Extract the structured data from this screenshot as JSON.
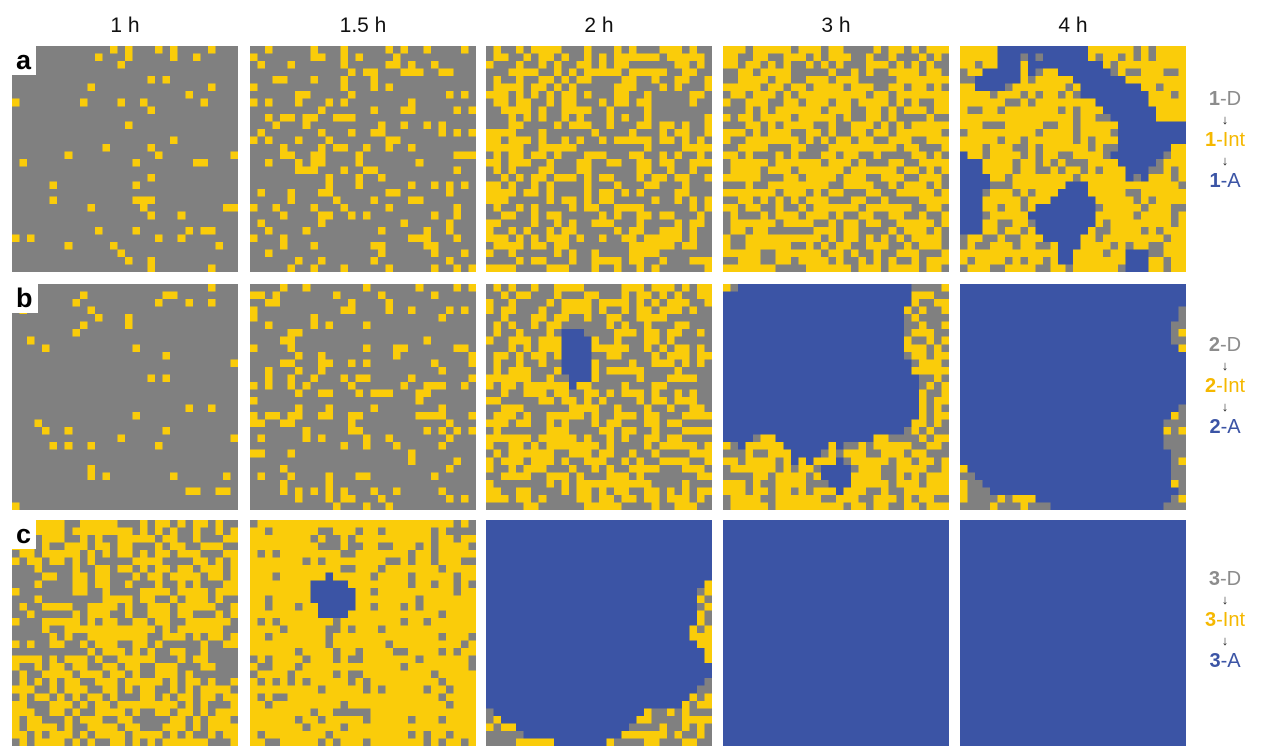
{
  "colors": {
    "gray": "#808080",
    "yellow": "#FACC0A",
    "blue": "#3B54A5"
  },
  "time_labels": [
    "1 h",
    "1.5 h",
    "2 h",
    "3 h",
    "4 h"
  ],
  "rows": [
    {
      "label": "a",
      "legend": [
        {
          "num": "1",
          "suffix": "-D",
          "color": "#8C8C8C"
        },
        {
          "num": "1",
          "suffix": "-Int",
          "color": "#F5B800"
        },
        {
          "num": "1",
          "suffix": "-A",
          "color": "#3B54A5"
        }
      ],
      "panels": [
        {
          "yellow_fraction": 0.07,
          "blue_fraction": 0.0
        },
        {
          "yellow_fraction": 0.2,
          "blue_fraction": 0.0
        },
        {
          "yellow_fraction": 0.45,
          "blue_fraction": 0.0
        },
        {
          "yellow_fraction": 0.62,
          "blue_fraction": 0.0
        },
        {
          "yellow_fraction": 0.55,
          "blue_fraction": 0.28
        }
      ]
    },
    {
      "label": "b",
      "legend": [
        {
          "num": "2",
          "suffix": "-D",
          "color": "#8C8C8C"
        },
        {
          "num": "2",
          "suffix": "-Int",
          "color": "#F5B800"
        },
        {
          "num": "2",
          "suffix": "-A",
          "color": "#3B54A5"
        }
      ],
      "panels": [
        {
          "yellow_fraction": 0.05,
          "blue_fraction": 0.0
        },
        {
          "yellow_fraction": 0.18,
          "blue_fraction": 0.0
        },
        {
          "yellow_fraction": 0.48,
          "blue_fraction": 0.03
        },
        {
          "yellow_fraction": 0.25,
          "blue_fraction": 0.6
        },
        {
          "yellow_fraction": 0.02,
          "blue_fraction": 0.92
        }
      ]
    },
    {
      "label": "c",
      "legend": [
        {
          "num": "3",
          "suffix": "-D",
          "color": "#8C8C8C"
        },
        {
          "num": "3",
          "suffix": "-Int",
          "color": "#F5B800"
        },
        {
          "num": "3",
          "suffix": "-A",
          "color": "#3B54A5"
        }
      ],
      "panels": [
        {
          "yellow_fraction": 0.55,
          "blue_fraction": 0.0
        },
        {
          "yellow_fraction": 0.8,
          "blue_fraction": 0.03
        },
        {
          "yellow_fraction": 0.06,
          "blue_fraction": 0.88
        },
        {
          "yellow_fraction": 0.0,
          "blue_fraction": 1.0
        },
        {
          "yellow_fraction": 0.0,
          "blue_fraction": 1.0
        }
      ]
    }
  ]
}
